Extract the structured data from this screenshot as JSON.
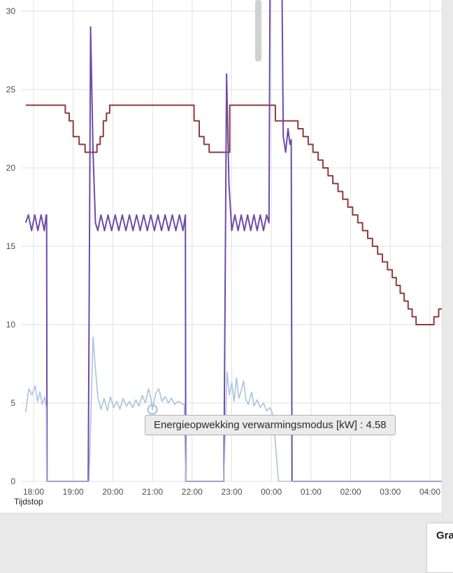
{
  "page": {
    "bottom_panel_title": "Gra"
  },
  "tooltip": {
    "text": "Energieopwekking verwarmingsmodus [kW] : 4.58",
    "series": "Energieopwekking verwarmingsmodus",
    "unit": "kW",
    "value": "4.58"
  },
  "chart_data": {
    "type": "line",
    "title": "",
    "xlabel": "Tijdstop",
    "ylabel": "",
    "x_ticks": [
      "18:00",
      "19:00",
      "20:00",
      "21:00",
      "22:00",
      "23:00",
      "00:00",
      "01:00",
      "02:00",
      "03:00",
      "04:00"
    ],
    "y_ticks": [
      0,
      5,
      10,
      15,
      20,
      25,
      30
    ],
    "ylim": [
      0,
      30.7
    ],
    "grid": true,
    "x_unit": "hours offset from 18:00",
    "hover_point": {
      "t": 3.0,
      "v": 4.58,
      "series": "Energieopwekking verwarmingsmodus [kW]"
    },
    "series": [
      {
        "name": "dark-red-line",
        "color": "#8e3c3c",
        "mode": "step",
        "width": 2,
        "points": [
          [
            -0.2,
            24
          ],
          [
            0.8,
            23.5
          ],
          [
            0.9,
            23
          ],
          [
            1.0,
            22
          ],
          [
            1.15,
            21.5
          ],
          [
            1.3,
            21
          ],
          [
            1.6,
            21.5
          ],
          [
            1.68,
            22
          ],
          [
            1.76,
            23
          ],
          [
            1.84,
            23.5
          ],
          [
            1.92,
            24
          ],
          [
            4.05,
            23
          ],
          [
            4.18,
            22
          ],
          [
            4.3,
            21.5
          ],
          [
            4.43,
            21
          ],
          [
            4.95,
            24
          ],
          [
            6.1,
            23
          ],
          [
            6.67,
            22.5
          ],
          [
            6.8,
            22
          ],
          [
            6.93,
            21.5
          ],
          [
            7.05,
            21
          ],
          [
            7.18,
            20.5
          ],
          [
            7.3,
            20
          ],
          [
            7.43,
            19.5
          ],
          [
            7.55,
            19
          ],
          [
            7.68,
            18.5
          ],
          [
            7.8,
            18
          ],
          [
            7.93,
            17.5
          ],
          [
            8.05,
            17
          ],
          [
            8.18,
            16.5
          ],
          [
            8.3,
            16
          ],
          [
            8.43,
            15.5
          ],
          [
            8.55,
            15
          ],
          [
            8.68,
            14.5
          ],
          [
            8.8,
            14
          ],
          [
            8.93,
            13.5
          ],
          [
            9.05,
            13
          ],
          [
            9.15,
            12.5
          ],
          [
            9.25,
            12
          ],
          [
            9.35,
            11.5
          ],
          [
            9.45,
            11
          ],
          [
            9.55,
            10.5
          ],
          [
            9.65,
            10
          ],
          [
            10.1,
            10.5
          ],
          [
            10.22,
            11
          ],
          [
            10.32,
            11.5
          ],
          [
            10.62,
            11.5
          ]
        ]
      },
      {
        "name": "purple-line",
        "color": "#6f4aa8",
        "mode": "linear",
        "width": 2,
        "points": [
          [
            -0.2,
            16.5
          ],
          [
            -0.13,
            17
          ],
          [
            -0.05,
            16
          ],
          [
            0.03,
            17
          ],
          [
            0.11,
            16
          ],
          [
            0.19,
            17
          ],
          [
            0.27,
            16
          ],
          [
            0.32,
            17
          ],
          [
            0.33,
            17
          ],
          [
            0.34,
            0
          ],
          [
            1.38,
            0
          ],
          [
            1.44,
            29
          ],
          [
            1.5,
            21
          ],
          [
            1.56,
            16.5
          ],
          [
            1.62,
            16
          ],
          [
            1.7,
            17
          ],
          [
            1.79,
            16
          ],
          [
            1.88,
            17
          ],
          [
            1.97,
            16
          ],
          [
            2.06,
            17
          ],
          [
            2.15,
            16
          ],
          [
            2.24,
            17
          ],
          [
            2.33,
            16
          ],
          [
            2.42,
            17
          ],
          [
            2.51,
            16
          ],
          [
            2.6,
            17
          ],
          [
            2.69,
            16
          ],
          [
            2.78,
            17
          ],
          [
            2.87,
            16
          ],
          [
            2.96,
            17
          ],
          [
            3.05,
            16
          ],
          [
            3.14,
            17
          ],
          [
            3.23,
            16
          ],
          [
            3.32,
            17
          ],
          [
            3.41,
            16
          ],
          [
            3.5,
            17
          ],
          [
            3.59,
            16
          ],
          [
            3.68,
            17
          ],
          [
            3.77,
            16
          ],
          [
            3.83,
            17
          ],
          [
            3.84,
            0
          ],
          [
            4.8,
            0
          ],
          [
            4.87,
            26
          ],
          [
            4.93,
            19
          ],
          [
            5.0,
            16
          ],
          [
            5.08,
            17
          ],
          [
            5.16,
            16
          ],
          [
            5.24,
            17
          ],
          [
            5.32,
            16
          ],
          [
            5.4,
            17
          ],
          [
            5.48,
            16
          ],
          [
            5.56,
            17
          ],
          [
            5.64,
            16
          ],
          [
            5.72,
            17
          ],
          [
            5.8,
            16
          ],
          [
            5.88,
            17
          ],
          [
            5.94,
            16.5
          ],
          [
            5.97,
            34
          ],
          [
            6.26,
            34
          ],
          [
            6.3,
            22
          ],
          [
            6.36,
            21
          ],
          [
            6.42,
            22.5
          ],
          [
            6.47,
            21.5
          ],
          [
            6.5,
            21.8
          ],
          [
            6.52,
            0
          ],
          [
            10.62,
            0
          ]
        ]
      },
      {
        "name": "Energieopwekking verwarmingsmodus [kW]",
        "color": "#aac3de",
        "mode": "linear",
        "width": 1.6,
        "points": [
          [
            -0.2,
            4.4
          ],
          [
            -0.12,
            5.9
          ],
          [
            -0.04,
            5.5
          ],
          [
            0.04,
            6.1
          ],
          [
            0.1,
            5.1
          ],
          [
            0.16,
            5.7
          ],
          [
            0.22,
            4.9
          ],
          [
            0.28,
            5.4
          ],
          [
            0.32,
            4.7
          ],
          [
            0.33,
            0
          ],
          [
            1.4,
            0
          ],
          [
            1.5,
            9.2
          ],
          [
            1.56,
            7.2
          ],
          [
            1.62,
            5.4
          ],
          [
            1.7,
            4.6
          ],
          [
            1.78,
            5.3
          ],
          [
            1.86,
            4.5
          ],
          [
            1.94,
            5.4
          ],
          [
            2.02,
            4.7
          ],
          [
            2.1,
            5.1
          ],
          [
            2.18,
            4.6
          ],
          [
            2.26,
            5.3
          ],
          [
            2.34,
            4.8
          ],
          [
            2.42,
            5.1
          ],
          [
            2.5,
            4.7
          ],
          [
            2.58,
            5.2
          ],
          [
            2.66,
            4.8
          ],
          [
            2.74,
            5.5
          ],
          [
            2.82,
            5.0
          ],
          [
            2.9,
            5.9
          ],
          [
            2.96,
            5.3
          ],
          [
            3.0,
            4.58
          ],
          [
            3.08,
            5.6
          ],
          [
            3.16,
            5.9
          ],
          [
            3.24,
            5.1
          ],
          [
            3.32,
            5.4
          ],
          [
            3.4,
            5.0
          ],
          [
            3.48,
            5.3
          ],
          [
            3.56,
            4.9
          ],
          [
            3.64,
            5.1
          ],
          [
            3.72,
            5.0
          ],
          [
            3.8,
            4.9
          ],
          [
            3.84,
            0
          ],
          [
            4.8,
            0
          ],
          [
            4.88,
            7.0
          ],
          [
            4.94,
            5.5
          ],
          [
            5.0,
            6.3
          ],
          [
            5.06,
            5.1
          ],
          [
            5.12,
            6.6
          ],
          [
            5.18,
            5.3
          ],
          [
            5.24,
            5.8
          ],
          [
            5.3,
            6.4
          ],
          [
            5.36,
            5.2
          ],
          [
            5.42,
            4.9
          ],
          [
            5.5,
            5.7
          ],
          [
            5.56,
            4.8
          ],
          [
            5.64,
            5.2
          ],
          [
            5.72,
            4.7
          ],
          [
            5.8,
            5.0
          ],
          [
            5.88,
            4.5
          ],
          [
            5.96,
            4.7
          ],
          [
            6.02,
            4.4
          ],
          [
            6.1,
            2.5
          ],
          [
            6.18,
            0
          ],
          [
            10.62,
            0
          ]
        ]
      }
    ],
    "colors": {
      "gridline": "#e2e2e2",
      "tick_text": "#4d4d4d",
      "tooltip_bg": "#ebebeb",
      "page_bg": "#e9e9e9"
    }
  }
}
